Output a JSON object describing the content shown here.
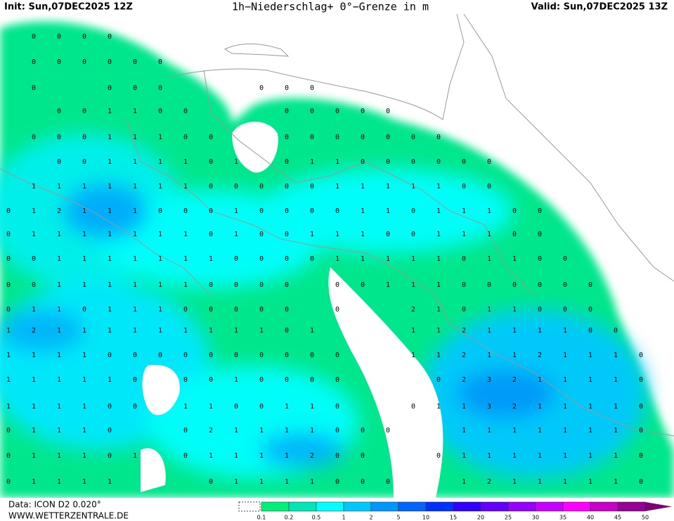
{
  "header": {
    "init": "Init: Sun,07DEC2025 12Z",
    "title": "1h−Niederschlag+ 0°−Grenze in m",
    "valid": "Valid: Sun,07DEC2025 13Z"
  },
  "footer": {
    "data": "Data: ICON D2 0.020°",
    "site": "WWW.WETTERZENTRALE.DE"
  },
  "legend": {
    "ticks": [
      0.1,
      0.2,
      0.5,
      1,
      2,
      5,
      10,
      15,
      20,
      25,
      30,
      35,
      40,
      45,
      50
    ],
    "colors": [
      "#00f078",
      "#00e6b4",
      "#00ffff",
      "#00c8ff",
      "#0096ff",
      "#0064ff",
      "#0032ff",
      "#3200ff",
      "#6400ff",
      "#9600ff",
      "#c800ff",
      "#ff00ff",
      "#c800c8",
      "#960096"
    ]
  },
  "grid": {
    "rows": [
      [
        null,
        0,
        0,
        0,
        0,
        null,
        null,
        null,
        null,
        null,
        null,
        null,
        null,
        null,
        null,
        null,
        null,
        null,
        null,
        null,
        null,
        null,
        null,
        null,
        null,
        null
      ],
      [
        null,
        0,
        0,
        0,
        0,
        0,
        0,
        null,
        null,
        null,
        null,
        null,
        null,
        null,
        null,
        null,
        null,
        null,
        null,
        null,
        null,
        null,
        null,
        null,
        null,
        null
      ],
      [
        null,
        0,
        null,
        null,
        0,
        0,
        0,
        null,
        null,
        null,
        0,
        0,
        0,
        null,
        null,
        null,
        null,
        null,
        null,
        null,
        null,
        null,
        null,
        null,
        null,
        null
      ],
      [
        null,
        null,
        0,
        0,
        1,
        1,
        0,
        0,
        null,
        null,
        null,
        0,
        0,
        0,
        0,
        0,
        null,
        null,
        null,
        null,
        null,
        null,
        null,
        null,
        null,
        null
      ],
      [
        null,
        0,
        0,
        0,
        1,
        1,
        1,
        0,
        0,
        null,
        null,
        0,
        0,
        0,
        0,
        0,
        0,
        0,
        null,
        null,
        null,
        null,
        null,
        null,
        null,
        null
      ],
      [
        null,
        null,
        0,
        0,
        1,
        1,
        1,
        1,
        0,
        1,
        null,
        0,
        1,
        1,
        0,
        0,
        0,
        0,
        0,
        0,
        null,
        null,
        null,
        null,
        null,
        null
      ],
      [
        null,
        1,
        1,
        1,
        1,
        1,
        1,
        1,
        0,
        0,
        0,
        0,
        0,
        1,
        1,
        1,
        1,
        1,
        0,
        0,
        null,
        null,
        null,
        null,
        null,
        null
      ],
      [
        0,
        1,
        2,
        1,
        1,
        1,
        0,
        0,
        0,
        1,
        0,
        0,
        0,
        0,
        1,
        1,
        0,
        1,
        1,
        1,
        0,
        0,
        null,
        null,
        null,
        null
      ],
      [
        0,
        1,
        1,
        1,
        1,
        1,
        1,
        1,
        0,
        1,
        0,
        0,
        1,
        1,
        1,
        0,
        0,
        1,
        1,
        1,
        0,
        0,
        null,
        null,
        null,
        null
      ],
      [
        0,
        0,
        1,
        1,
        1,
        1,
        1,
        1,
        1,
        0,
        0,
        0,
        0,
        1,
        1,
        1,
        1,
        1,
        0,
        1,
        1,
        0,
        0,
        null,
        null,
        null
      ],
      [
        0,
        0,
        1,
        1,
        1,
        1,
        1,
        1,
        0,
        0,
        0,
        0,
        null,
        0,
        0,
        1,
        1,
        1,
        0,
        0,
        0,
        0,
        0,
        0,
        null,
        null
      ],
      [
        0,
        1,
        1,
        0,
        1,
        1,
        1,
        0,
        0,
        0,
        0,
        0,
        null,
        0,
        null,
        null,
        2,
        1,
        0,
        1,
        1,
        0,
        0,
        0,
        null,
        null
      ],
      [
        1,
        2,
        1,
        1,
        1,
        1,
        1,
        1,
        1,
        1,
        1,
        0,
        1,
        null,
        null,
        null,
        1,
        1,
        2,
        1,
        1,
        1,
        1,
        0,
        0,
        null
      ],
      [
        1,
        1,
        1,
        1,
        0,
        0,
        0,
        0,
        0,
        0,
        0,
        0,
        0,
        0,
        null,
        null,
        1,
        1,
        2,
        1,
        1,
        2,
        1,
        1,
        1,
        0
      ],
      [
        1,
        1,
        1,
        1,
        1,
        0,
        null,
        0,
        0,
        1,
        0,
        0,
        0,
        0,
        null,
        null,
        null,
        0,
        2,
        3,
        2,
        1,
        1,
        1,
        1,
        0
      ],
      [
        1,
        1,
        1,
        1,
        0,
        0,
        null,
        1,
        1,
        0,
        0,
        1,
        1,
        0,
        null,
        null,
        0,
        1,
        1,
        3,
        2,
        1,
        1,
        1,
        1,
        0
      ],
      [
        0,
        1,
        1,
        1,
        0,
        null,
        null,
        0,
        2,
        1,
        1,
        1,
        1,
        0,
        0,
        0,
        null,
        null,
        1,
        1,
        1,
        1,
        1,
        1,
        1,
        0
      ],
      [
        0,
        1,
        1,
        1,
        0,
        1,
        null,
        0,
        1,
        1,
        1,
        1,
        2,
        0,
        0,
        null,
        null,
        0,
        1,
        1,
        1,
        1,
        1,
        1,
        1,
        0
      ],
      [
        0,
        1,
        1,
        1,
        1,
        null,
        null,
        null,
        0,
        1,
        1,
        1,
        1,
        0,
        0,
        0,
        null,
        null,
        1,
        2,
        1,
        1,
        1,
        1,
        1,
        0
      ]
    ]
  }
}
